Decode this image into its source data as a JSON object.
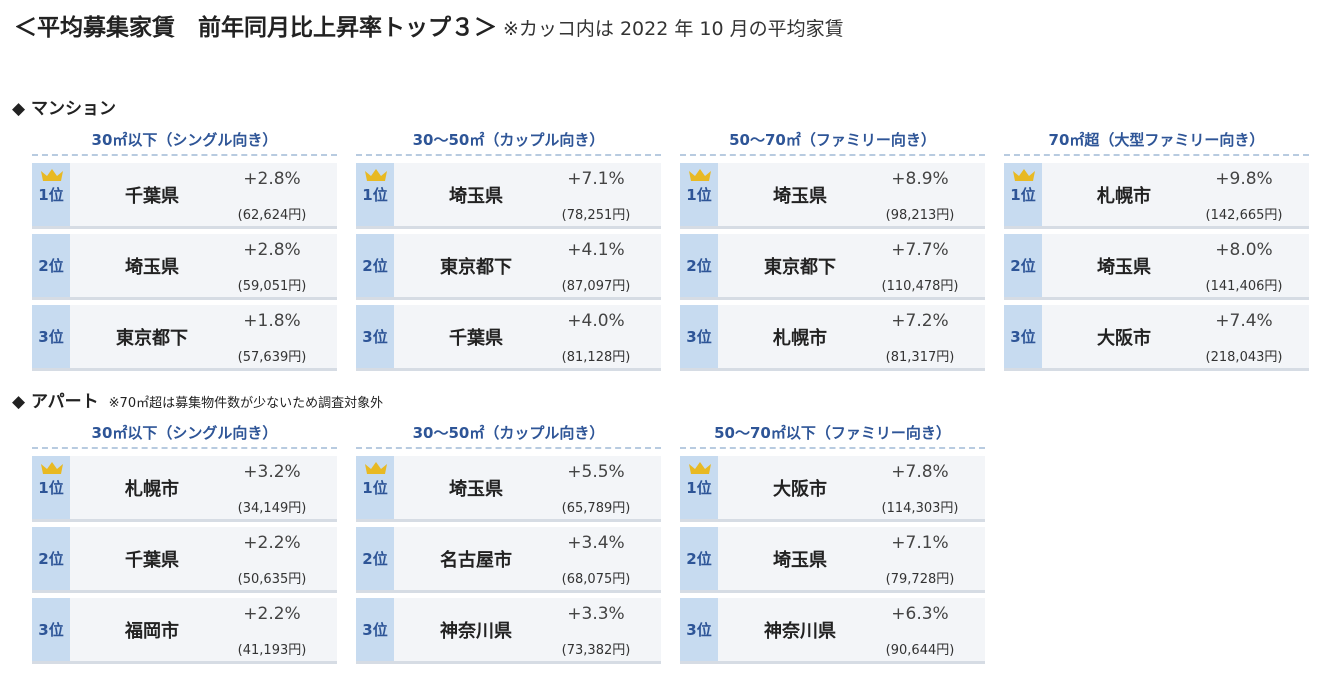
{
  "header": {
    "title": "＜平均募集家賃　前年同月比上昇率トップ３＞",
    "note": "※カッコ内は 2022 年 10 月の平均家賃"
  },
  "sections": [
    {
      "title": "◆ マンション",
      "groups": [
        {
          "heading": "30㎡以下（シングル向き）",
          "rows": [
            {
              "rank": "1位",
              "area": "千葉県",
              "change": "+2.8%",
              "rent": "(62,624円)"
            },
            {
              "rank": "2位",
              "area": "埼玉県",
              "change": "+2.8%",
              "rent": "(59,051円)"
            },
            {
              "rank": "3位",
              "area": "東京都下",
              "change": "+1.8%",
              "rent": "(57,639円)"
            }
          ]
        },
        {
          "heading": "30〜50㎡（カップル向き）",
          "rows": [
            {
              "rank": "1位",
              "area": "埼玉県",
              "change": "+7.1%",
              "rent": "(78,251円)"
            },
            {
              "rank": "2位",
              "area": "東京都下",
              "change": "+4.1%",
              "rent": "(87,097円)"
            },
            {
              "rank": "3位",
              "area": "千葉県",
              "change": "+4.0%",
              "rent": "(81,128円)"
            }
          ]
        },
        {
          "heading": "50〜70㎡（ファミリー向き）",
          "rows": [
            {
              "rank": "1位",
              "area": "埼玉県",
              "change": "+8.9%",
              "rent": "(98,213円)"
            },
            {
              "rank": "2位",
              "area": "東京都下",
              "change": "+7.7%",
              "rent": "(110,478円)"
            },
            {
              "rank": "3位",
              "area": "札幌市",
              "change": "+7.2%",
              "rent": "(81,317円)"
            }
          ]
        },
        {
          "heading": "70㎡超（大型ファミリー向き）",
          "rows": [
            {
              "rank": "1位",
              "area": "札幌市",
              "change": "+9.8%",
              "rent": "(142,665円)"
            },
            {
              "rank": "2位",
              "area": "埼玉県",
              "change": "+8.0%",
              "rent": "(141,406円)"
            },
            {
              "rank": "3位",
              "area": "大阪市",
              "change": "+7.4%",
              "rent": "(218,043円)"
            }
          ]
        }
      ]
    },
    {
      "title": "◆ アパート",
      "note": "※70㎡超は募集物件数が少ないため調査対象外",
      "groups": [
        {
          "heading": "30㎡以下（シングル向き）",
          "rows": [
            {
              "rank": "1位",
              "area": "札幌市",
              "change": "+3.2%",
              "rent": "(34,149円)"
            },
            {
              "rank": "2位",
              "area": "千葉県",
              "change": "+2.2%",
              "rent": "(50,635円)"
            },
            {
              "rank": "3位",
              "area": "福岡市",
              "change": "+2.2%",
              "rent": "(41,193円)"
            }
          ]
        },
        {
          "heading": "30〜50㎡（カップル向き）",
          "rows": [
            {
              "rank": "1位",
              "area": "埼玉県",
              "change": "+5.5%",
              "rent": "(65,789円)"
            },
            {
              "rank": "2位",
              "area": "名古屋市",
              "change": "+3.4%",
              "rent": "(68,075円)"
            },
            {
              "rank": "3位",
              "area": "神奈川県",
              "change": "+3.3%",
              "rent": "(73,382円)"
            }
          ]
        },
        {
          "heading": "50〜70㎡以下（ファミリー向き）",
          "rows": [
            {
              "rank": "1位",
              "area": "大阪市",
              "change": "+7.8%",
              "rent": "(114,303円)"
            },
            {
              "rank": "2位",
              "area": "埼玉県",
              "change": "+7.1%",
              "rent": "(79,728円)"
            },
            {
              "rank": "3位",
              "area": "神奈川県",
              "change": "+6.3%",
              "rent": "(90,644円)"
            }
          ]
        }
      ]
    }
  ]
}
